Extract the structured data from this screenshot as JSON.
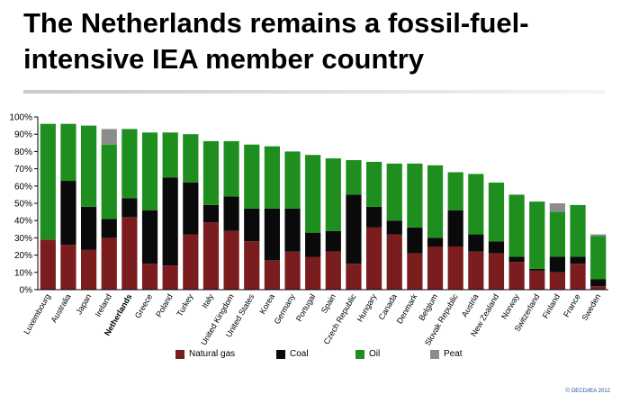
{
  "title_lines": [
    "The Netherlands remains a fossil-fuel-",
    "intensive IEA member country"
  ],
  "copyright": "© OECD/IEA 2012",
  "colors": {
    "natural_gas": "#7b1c1f",
    "coal": "#0a0a0a",
    "oil": "#1e8f1e",
    "peat": "#8c8c8c"
  },
  "chart_data": {
    "type": "bar",
    "stacked": true,
    "ylim": [
      0,
      100
    ],
    "yticks": [
      "0%",
      "10%",
      "20%",
      "30%",
      "40%",
      "50%",
      "60%",
      "70%",
      "80%",
      "90%",
      "100%"
    ],
    "categories": [
      "Luxembourg",
      "Australia",
      "Japan",
      "Ireland",
      "Netherlands",
      "Greece",
      "Poland",
      "Turkey",
      "Italy",
      "United Kingdom",
      "United States",
      "Korea",
      "Germany",
      "Portugal",
      "Spain",
      "Czech Republic",
      "Hungary",
      "Canada",
      "Denmark",
      "Belgium",
      "Slovak Republic",
      "Austria",
      "New Zealand",
      "Norway",
      "Switzerland",
      "Finland",
      "France",
      "Sweden"
    ],
    "highlight_category": "Netherlands",
    "legend_placement": "bottom",
    "series": [
      {
        "name": "Natural gas",
        "color_key": "natural_gas",
        "values": [
          29,
          26,
          23,
          30,
          42,
          15,
          14,
          32,
          39,
          34,
          28,
          17,
          22,
          19,
          22,
          15,
          36,
          32,
          21,
          25,
          25,
          22,
          21,
          16,
          11,
          10,
          15,
          2
        ]
      },
      {
        "name": "Coal",
        "color_key": "coal",
        "values": [
          0,
          37,
          25,
          11,
          11,
          31,
          51,
          30,
          10,
          20,
          19,
          30,
          25,
          14,
          12,
          40,
          12,
          8,
          15,
          5,
          21,
          10,
          7,
          3,
          1,
          9,
          4,
          4
        ]
      },
      {
        "name": "Oil",
        "color_key": "oil",
        "values": [
          67,
          33,
          47,
          43,
          40,
          45,
          26,
          28,
          37,
          32,
          37,
          36,
          33,
          45,
          42,
          20,
          26,
          33,
          37,
          42,
          22,
          35,
          34,
          36,
          39,
          26,
          30,
          25
        ]
      },
      {
        "name": "Peat",
        "color_key": "peat",
        "values": [
          0,
          0,
          0,
          9,
          0,
          0,
          0,
          0,
          0,
          0,
          0,
          0,
          0,
          0,
          0,
          0,
          0,
          0,
          0,
          0,
          0,
          0,
          0,
          0,
          0,
          5,
          0,
          1
        ]
      }
    ]
  }
}
